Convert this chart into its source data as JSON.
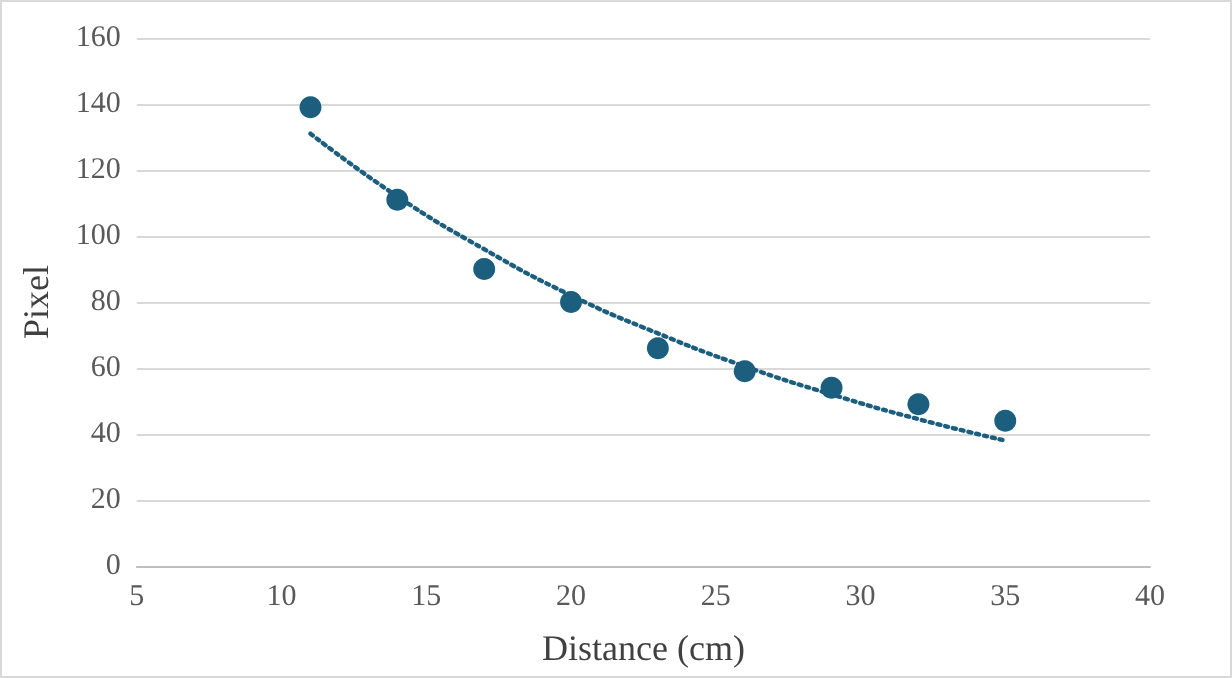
{
  "chart_data": {
    "type": "scatter",
    "xlabel": "Distance (cm)",
    "ylabel": "Pixel",
    "xlim": [
      5,
      40
    ],
    "xticks": [
      5,
      10,
      15,
      20,
      25,
      30,
      35,
      40
    ],
    "ylim": [
      0,
      160
    ],
    "yticks": [
      0,
      20,
      40,
      60,
      80,
      100,
      120,
      140,
      160
    ],
    "grid": "y",
    "marker": "circle",
    "series": [
      {
        "color": "#1b5e7e",
        "x": [
          11,
          14,
          17,
          20,
          23,
          26,
          29,
          32,
          35
        ],
        "values": [
          139,
          111,
          90,
          80,
          66,
          59,
          54,
          49,
          44
        ]
      },
      {
        "type": "line",
        "color": "#1b5e7e",
        "line_style": "dotted",
        "marker": "none",
        "x": [
          11,
          14,
          17,
          20,
          23,
          26,
          29,
          32,
          35
        ],
        "values": [
          131,
          112,
          96,
          82,
          70.5,
          60.5,
          52,
          44.5,
          38
        ]
      }
    ]
  }
}
